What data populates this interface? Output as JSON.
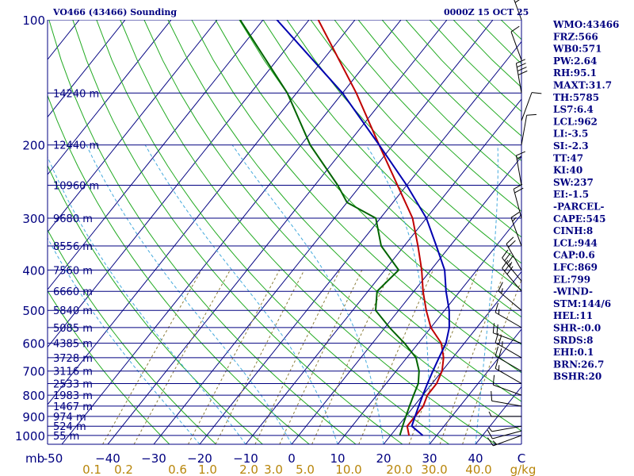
{
  "chart_data": {
    "type": "line",
    "title_left": "VO466 (43466) Sounding",
    "title_right": "0000Z 15 OCT 25",
    "pressure_unit": "mb",
    "mixing_ratio_unit": "g/kg",
    "pressure_ticks": [
      "100",
      "200",
      "300",
      "400",
      "500",
      "600",
      "700",
      "800",
      "900",
      "1000"
    ],
    "pressure_values": [
      100,
      200,
      300,
      400,
      500,
      600,
      700,
      800,
      900,
      1000
    ],
    "temperature_ticks": [
      "-50",
      "−40",
      "−30",
      "−20",
      "−10",
      "0",
      "10",
      "20",
      "30",
      "40",
      "C"
    ],
    "temperature_values": [
      -50,
      -40,
      -30,
      -20,
      -10,
      0,
      10,
      20,
      30,
      40
    ],
    "mixing_ratio_ticks": [
      "0.1",
      "0.2",
      "0.6",
      "1.0",
      "2.0",
      "3.0",
      "5.0",
      "10.0",
      "20.0",
      "30.0",
      "40.0"
    ],
    "heights": [
      {
        "p": 150,
        "label": "14240 m"
      },
      {
        "p": 200,
        "label": "12440 m"
      },
      {
        "p": 250,
        "label": "10960 m"
      },
      {
        "p": 300,
        "label": "9680 m"
      },
      {
        "p": 350,
        "label": "8556 m"
      },
      {
        "p": 400,
        "label": "7560 m"
      },
      {
        "p": 450,
        "label": "6660 m"
      },
      {
        "p": 500,
        "label": "5840 m"
      },
      {
        "p": 550,
        "label": "5085 m"
      },
      {
        "p": 600,
        "label": "4385 m"
      },
      {
        "p": 650,
        "label": "3728 m"
      },
      {
        "p": 700,
        "label": "3116 m"
      },
      {
        "p": 750,
        "label": "2533 m"
      },
      {
        "p": 800,
        "label": "1983 m"
      },
      {
        "p": 850,
        "label": "1467 m"
      },
      {
        "p": 900,
        "label": "974 m"
      },
      {
        "p": 950,
        "label": "524 m"
      },
      {
        "p": 1000,
        "label": "55 m"
      }
    ],
    "series": [
      {
        "name": "temperature",
        "color": "#c00000",
        "points": [
          [
            1000,
            24
          ],
          [
            950,
            22
          ],
          [
            900,
            22
          ],
          [
            850,
            22
          ],
          [
            800,
            21
          ],
          [
            750,
            21
          ],
          [
            700,
            20
          ],
          [
            650,
            18
          ],
          [
            600,
            15
          ],
          [
            550,
            10
          ],
          [
            500,
            6
          ],
          [
            450,
            2
          ],
          [
            400,
            -2
          ],
          [
            350,
            -7
          ],
          [
            300,
            -13
          ],
          [
            250,
            -22
          ],
          [
            200,
            -33
          ],
          [
            150,
            -47
          ],
          [
            100,
            -68
          ]
        ]
      },
      {
        "name": "dewpoint",
        "color": "#006400",
        "points": [
          [
            1000,
            22
          ],
          [
            950,
            21
          ],
          [
            900,
            20
          ],
          [
            850,
            19
          ],
          [
            800,
            18
          ],
          [
            750,
            17
          ],
          [
            700,
            15
          ],
          [
            650,
            12
          ],
          [
            600,
            7
          ],
          [
            550,
            1
          ],
          [
            500,
            -5
          ],
          [
            450,
            -8
          ],
          [
            400,
            -7
          ],
          [
            350,
            -15
          ],
          [
            300,
            -21
          ],
          [
            275,
            -30
          ],
          [
            250,
            -35
          ],
          [
            200,
            -48
          ],
          [
            150,
            -62
          ],
          [
            100,
            -85
          ]
        ]
      },
      {
        "name": "parcel",
        "color": "#0000b0",
        "points": [
          [
            1000,
            27
          ],
          [
            950,
            23
          ],
          [
            900,
            22
          ],
          [
            850,
            21
          ],
          [
            800,
            20
          ],
          [
            750,
            19
          ],
          [
            700,
            18
          ],
          [
            650,
            17
          ],
          [
            600,
            16
          ],
          [
            550,
            14
          ],
          [
            500,
            11
          ],
          [
            450,
            7
          ],
          [
            400,
            3
          ],
          [
            350,
            -3
          ],
          [
            300,
            -10
          ],
          [
            250,
            -20
          ],
          [
            200,
            -33
          ],
          [
            150,
            -50
          ],
          [
            100,
            -77
          ]
        ]
      }
    ],
    "wind_barbs": [
      {
        "p": 1000,
        "dir": 250,
        "spd": 15
      },
      {
        "p": 975,
        "dir": 255,
        "spd": 10
      },
      {
        "p": 950,
        "dir": 260,
        "spd": 5
      },
      {
        "p": 900,
        "dir": 270,
        "spd": 5
      },
      {
        "p": 850,
        "dir": 280,
        "spd": 10
      },
      {
        "p": 800,
        "dir": 290,
        "spd": 10
      },
      {
        "p": 750,
        "dir": 300,
        "spd": 15
      },
      {
        "p": 700,
        "dir": 300,
        "spd": 20
      },
      {
        "p": 650,
        "dir": 300,
        "spd": 25
      },
      {
        "p": 600,
        "dir": 290,
        "spd": 20
      },
      {
        "p": 550,
        "dir": 300,
        "spd": 15
      },
      {
        "p": 500,
        "dir": 310,
        "spd": 15
      },
      {
        "p": 450,
        "dir": 320,
        "spd": 30
      },
      {
        "p": 425,
        "dir": 320,
        "spd": 35
      },
      {
        "p": 400,
        "dir": 330,
        "spd": 20
      },
      {
        "p": 350,
        "dir": 340,
        "spd": 15
      },
      {
        "p": 300,
        "dir": 345,
        "spd": 20
      },
      {
        "p": 250,
        "dir": 350,
        "spd": 15
      },
      {
        "p": 200,
        "dir": 10,
        "spd": 10
      },
      {
        "p": 175,
        "dir": 20,
        "spd": 10
      },
      {
        "p": 150,
        "dir": 350,
        "spd": 40
      },
      {
        "p": 125,
        "dir": 340,
        "spd": 10
      },
      {
        "p": 100,
        "dir": 340,
        "spd": 40
      }
    ],
    "indices": [
      "WMO:43466",
      "FRZ:566",
      "WB0:571",
      "PW:2.64",
      "RH:95.1",
      "MAXT:31.7",
      "TH:5785",
      "LS7:6.4",
      "LCL:962",
      "LI:-3.5",
      "SI:-2.3",
      "TT:47",
      "KI:40",
      "SW:237",
      "EI:-1.5",
      "-PARCEL-",
      "CAPE:545",
      "CINH:8",
      "LCL:944",
      "CAP:0.6",
      "LFC:869",
      "EL:799",
      "-WIND-",
      "STM:144/6",
      "HEL:11",
      "SHR-:0.0",
      "SRDS:8",
      "EHI:0.1",
      "BRN:26.7",
      "BSHR:20"
    ]
  }
}
